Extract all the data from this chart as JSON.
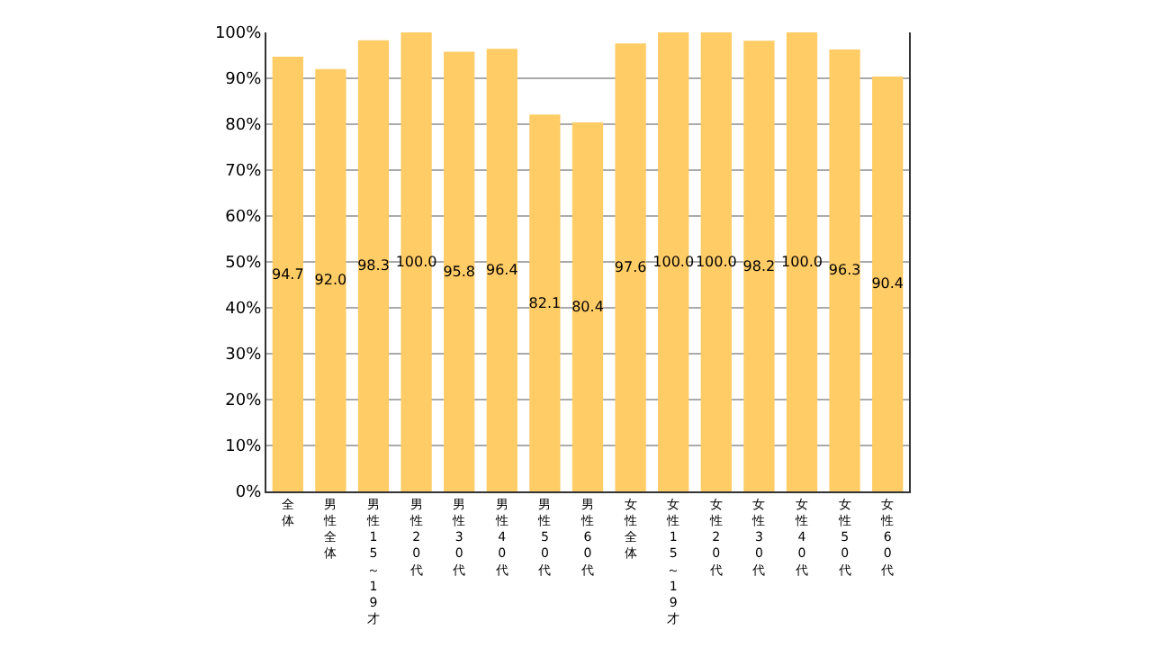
{
  "chart_data": {
    "type": "bar",
    "categories": [
      "全体",
      "男性全体",
      "男性15～19才",
      "男性20代",
      "男性30代",
      "男性40代",
      "男性50代",
      "男性60代",
      "女性全体",
      "女性15～19才",
      "女性20代",
      "女性30代",
      "女性40代",
      "女性50代",
      "女性60代"
    ],
    "values": [
      94.7,
      92.0,
      98.3,
      100.0,
      95.8,
      96.4,
      82.1,
      80.4,
      97.6,
      100.0,
      100.0,
      98.2,
      100.0,
      96.3,
      90.4
    ],
    "color": "#ffcc66",
    "ylim": [
      0,
      100
    ],
    "yticks": [
      {
        "value": 0,
        "label": "0%"
      },
      {
        "value": 10,
        "label": "10%"
      },
      {
        "value": 20,
        "label": "20%"
      },
      {
        "value": 30,
        "label": "30%"
      },
      {
        "value": 40,
        "label": "40%"
      },
      {
        "value": 50,
        "label": "50%"
      },
      {
        "value": 60,
        "label": "60%"
      },
      {
        "value": 70,
        "label": "70%"
      },
      {
        "value": 80,
        "label": "80%"
      },
      {
        "value": 90,
        "label": "90%"
      },
      {
        "value": 100,
        "label": "100%"
      }
    ],
    "grid": "y",
    "value_labels": [
      "94.7",
      "92.0",
      "98.3",
      "100.0",
      "95.8",
      "96.4",
      "82.1",
      "80.4",
      "97.6",
      "100.0",
      "100.0",
      "98.2",
      "100.0",
      "96.3",
      "90.4"
    ]
  }
}
